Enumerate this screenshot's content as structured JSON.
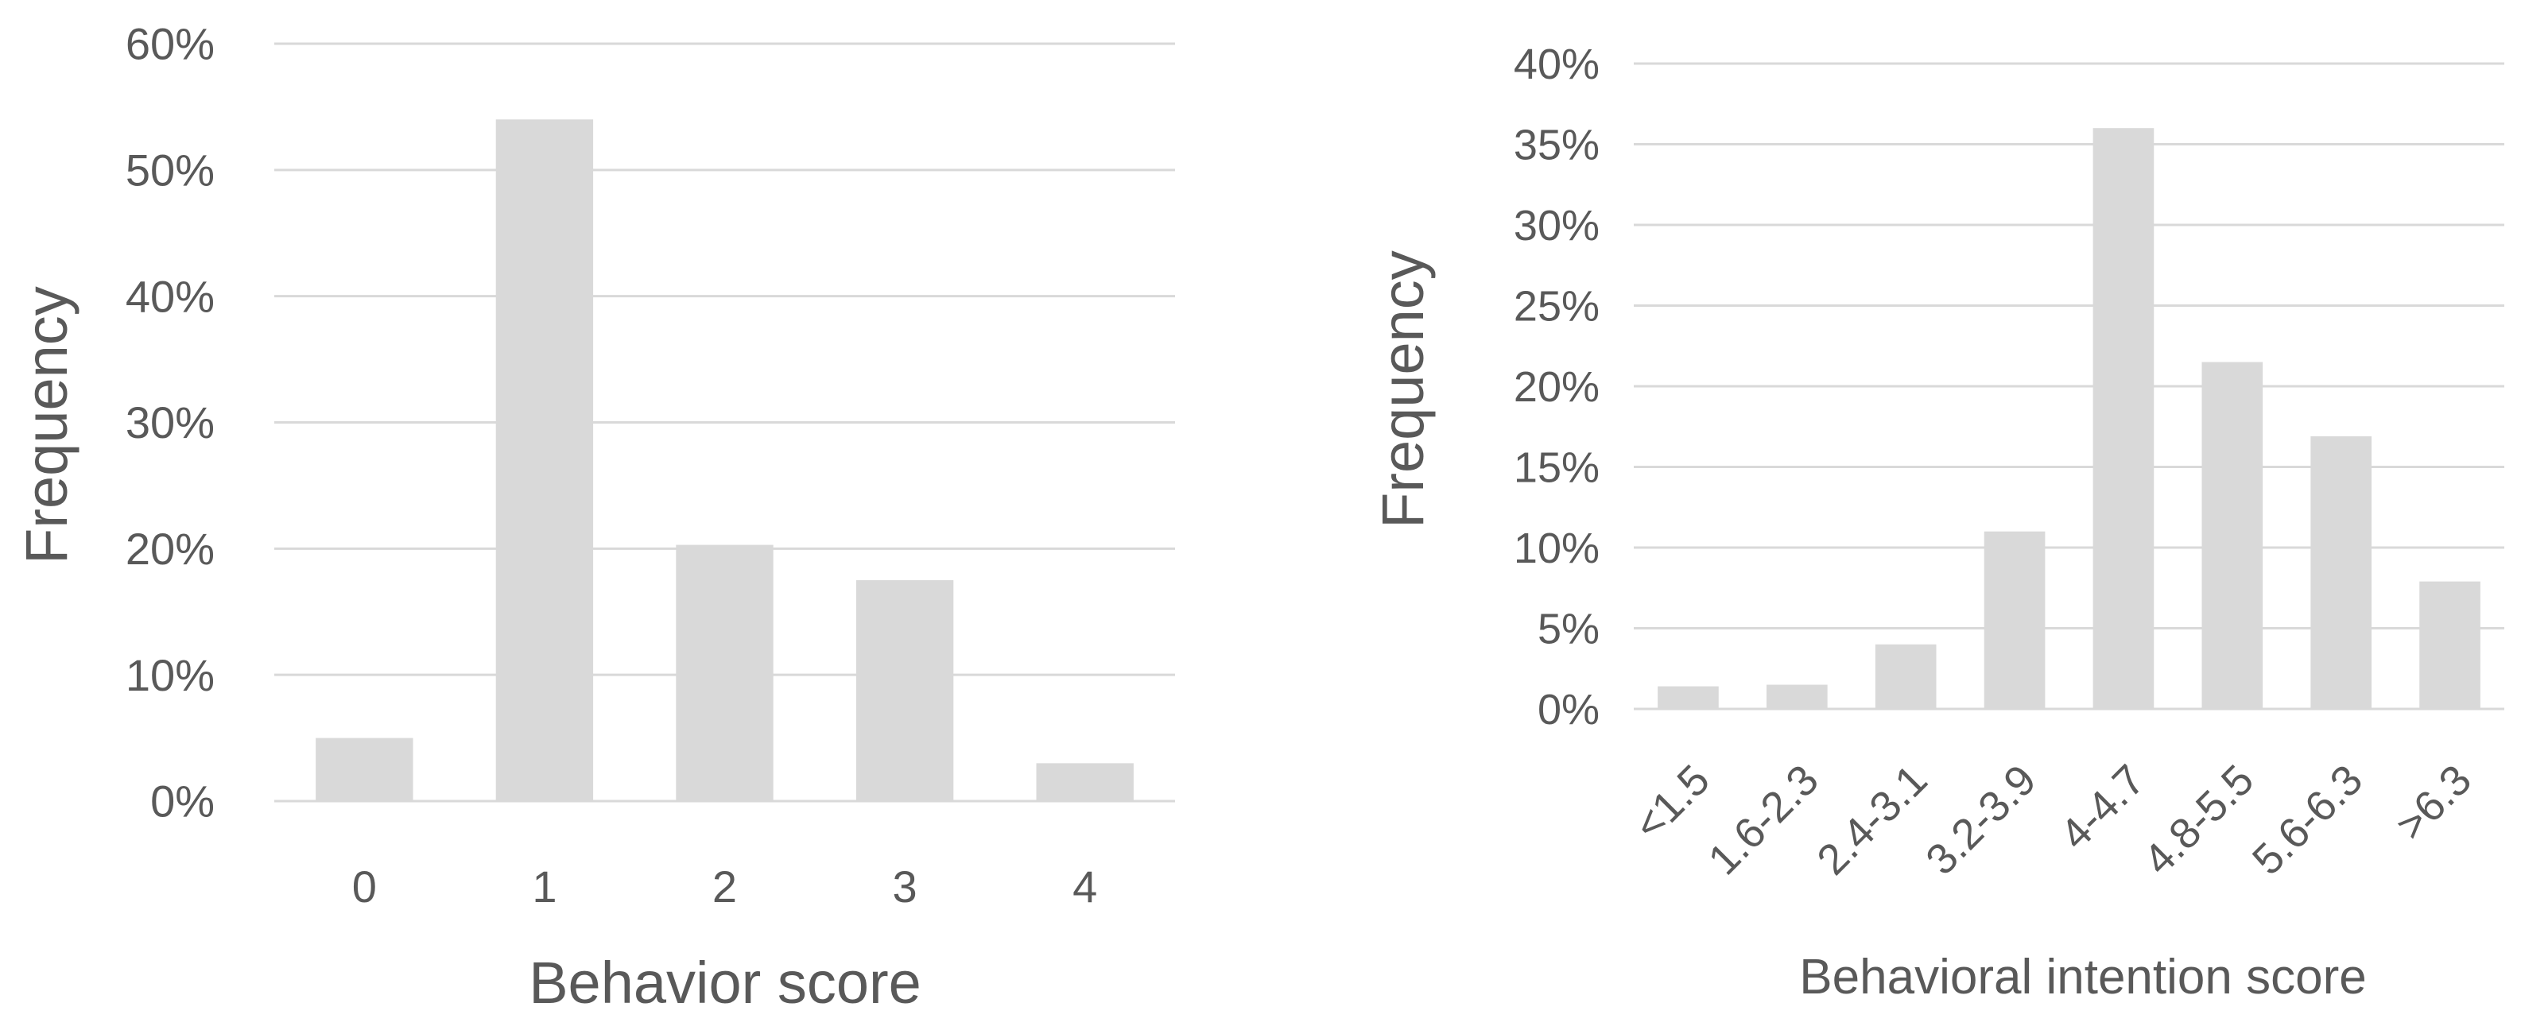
{
  "chart_data": [
    {
      "type": "bar",
      "title": "",
      "xlabel": "Behavior score",
      "ylabel": "Frequency",
      "categories": [
        "0",
        "1",
        "2",
        "3",
        "4"
      ],
      "values": [
        5.0,
        54.0,
        20.3,
        17.5,
        3.0
      ],
      "value_unit": "%",
      "ylim": [
        0,
        60
      ],
      "yticks": [
        0,
        10,
        20,
        30,
        40,
        50,
        60
      ],
      "ytick_labels": [
        "0%",
        "10%",
        "20%",
        "30%",
        "40%",
        "50%",
        "60%"
      ],
      "grid": true,
      "legend": "none",
      "bar_color": "#d9d9d9",
      "grid_color": "#d9d9d9"
    },
    {
      "type": "bar",
      "title": "",
      "xlabel": "Behavioral intention score",
      "ylabel": "Frequency",
      "categories": [
        "<1.5",
        "1.6-2.3",
        "2.4-3.1",
        "3.2-3.9",
        "4-4.7",
        "4.8-5.5",
        "5.6-6.3",
        ">6.3"
      ],
      "values": [
        1.4,
        1.5,
        4.0,
        11.0,
        36.0,
        21.5,
        16.9,
        7.9
      ],
      "value_unit": "%",
      "ylim": [
        0,
        40
      ],
      "yticks": [
        0,
        5,
        10,
        15,
        20,
        25,
        30,
        35,
        40
      ],
      "ytick_labels": [
        "0%",
        "5%",
        "10%",
        "15%",
        "20%",
        "25%",
        "30%",
        "35%",
        "40%"
      ],
      "grid": true,
      "legend": "none",
      "bar_color": "#d9d9d9",
      "grid_color": "#d9d9d9"
    }
  ]
}
